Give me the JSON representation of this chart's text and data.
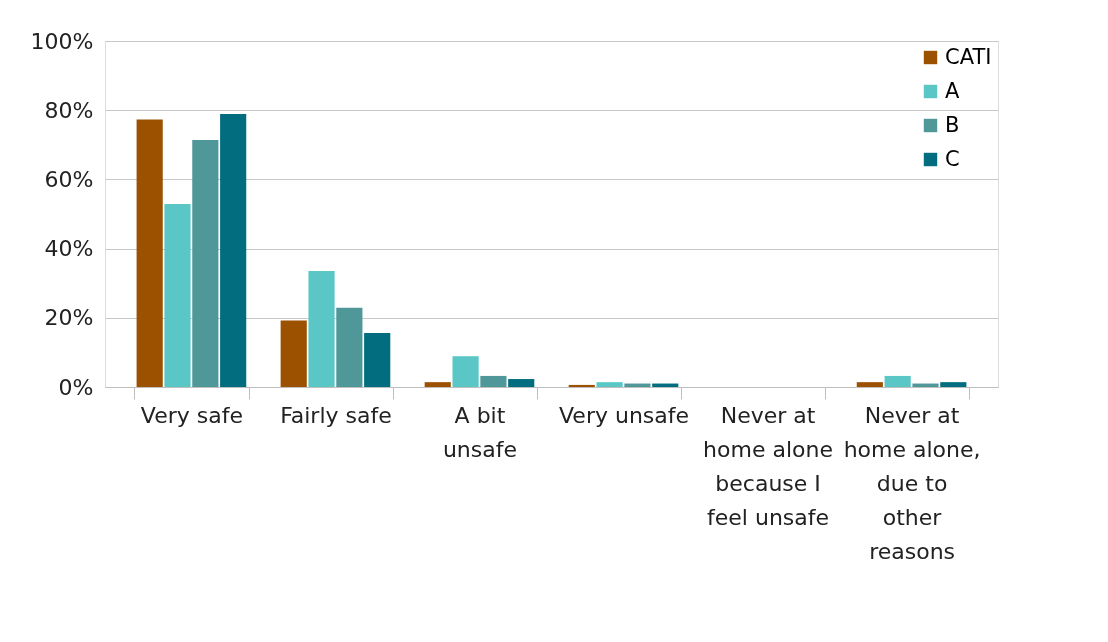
{
  "chart_data": {
    "type": "bar",
    "categories": [
      "Very safe",
      "Fairly safe",
      "A bit unsafe",
      "Very unsafe",
      "Never at home alone because I feel unsafe",
      "Never at home alone, due to other reasons"
    ],
    "series": [
      {
        "name": "CATI",
        "color": "#9b5100",
        "values": [
          77.3,
          19.2,
          1.4,
          0.6,
          0,
          1.4
        ]
      },
      {
        "name": "A",
        "color": "#5bc6c6",
        "values": [
          52.9,
          33.5,
          8.9,
          1.4,
          0,
          3.2
        ]
      },
      {
        "name": "B",
        "color": "#50979a",
        "values": [
          71.4,
          22.9,
          3.2,
          1.0,
          0,
          1.0
        ]
      },
      {
        "name": "C",
        "color": "#026d7e",
        "values": [
          78.9,
          15.6,
          2.3,
          1.0,
          0,
          1.4
        ]
      }
    ],
    "ylim": [
      0,
      100
    ],
    "yticks": [
      {
        "value": 0,
        "label": "0%"
      },
      {
        "value": 20,
        "label": "20%"
      },
      {
        "value": 40,
        "label": "40%"
      },
      {
        "value": 60,
        "label": "60%"
      },
      {
        "value": 80,
        "label": "80%"
      },
      {
        "value": 100,
        "label": "100%"
      }
    ],
    "grid": "y",
    "legend": "top right"
  }
}
